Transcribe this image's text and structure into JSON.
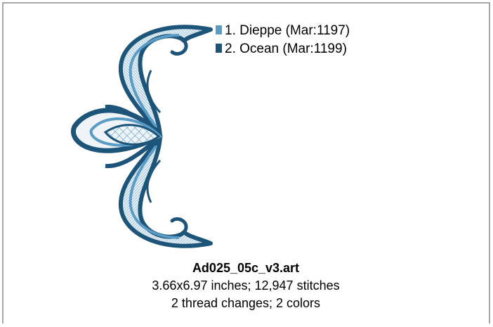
{
  "card": {
    "legend": [
      {
        "label": "1.  Dieppe (Mar:1197)",
        "color": "#5b9cc6"
      },
      {
        "label": "2.  Ocean (Mar:1199)",
        "color": "#1d5479"
      }
    ],
    "title": "Ad025_05c_v3.art",
    "details": [
      "3.66x6.97 inches; 12,947 stitches",
      "2 thread changes; 2 colors"
    ]
  }
}
